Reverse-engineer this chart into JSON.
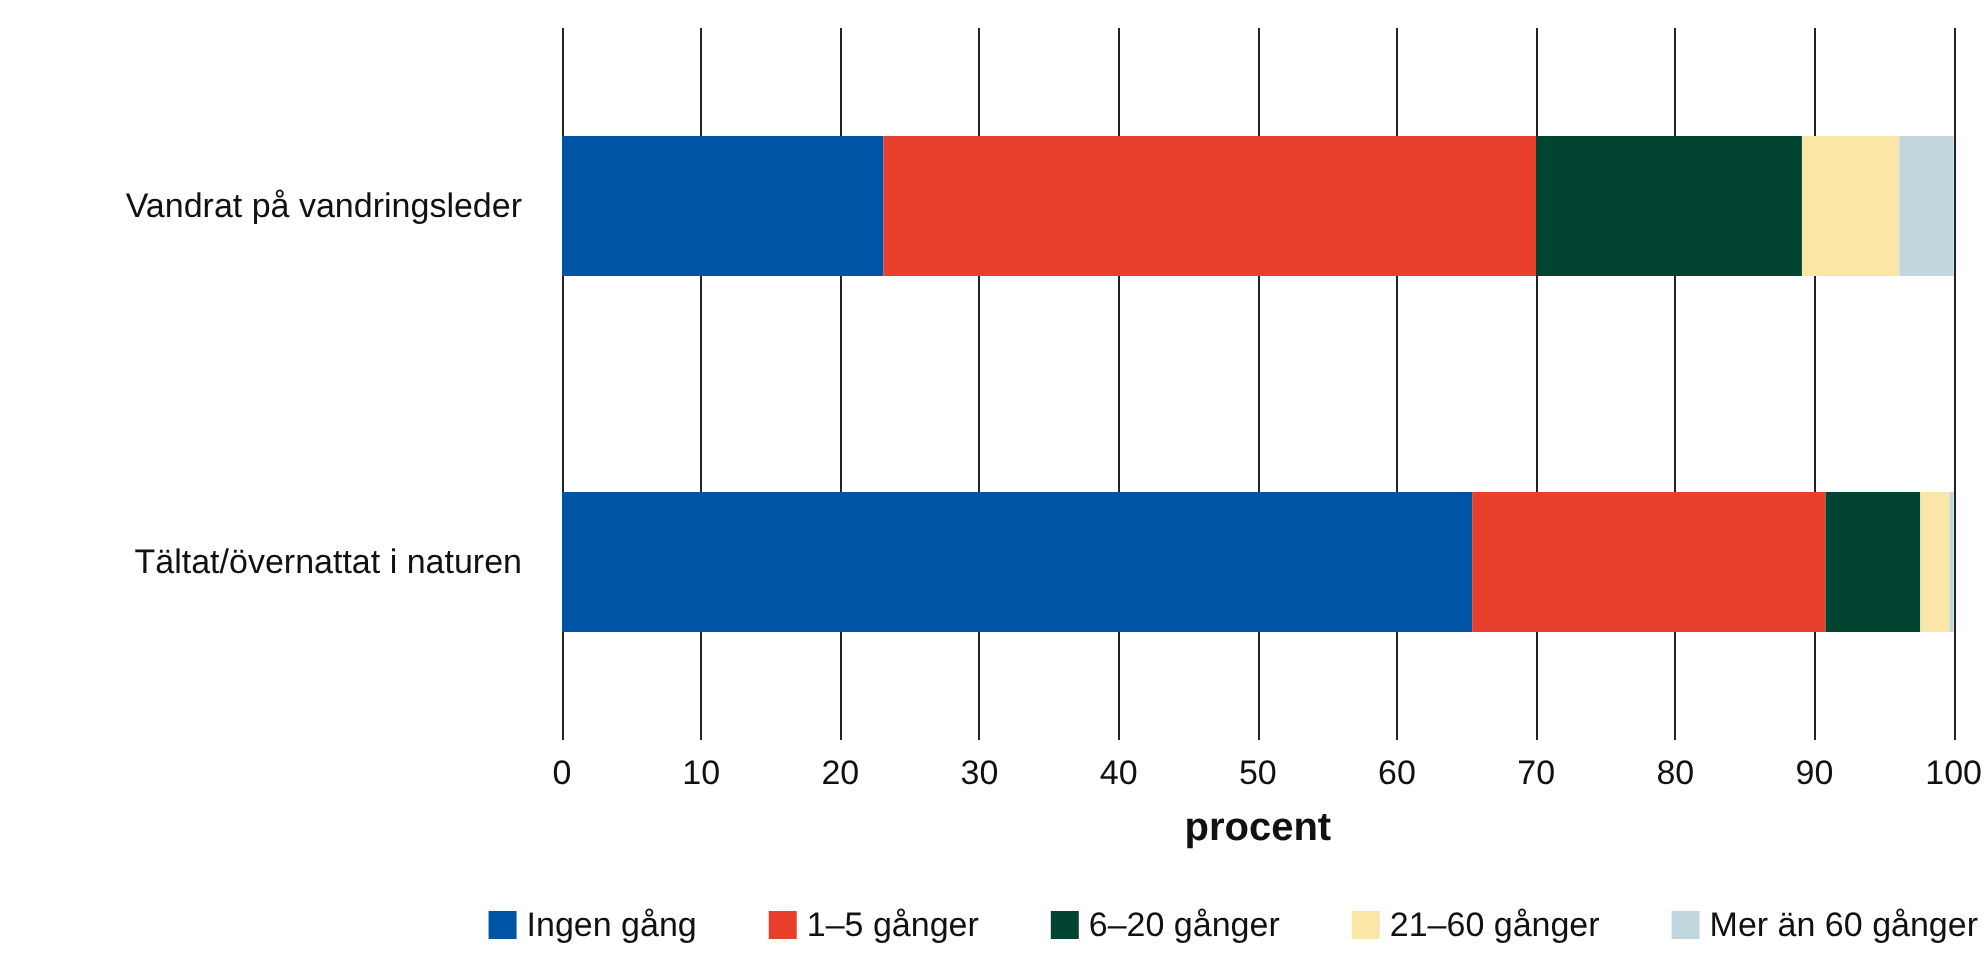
{
  "chart_data": {
    "type": "bar",
    "orientation": "horizontal",
    "stacked": true,
    "xlabel": "procent",
    "categories": [
      "Vandrat på vandringsleder",
      "Tältat/övernattat i naturen"
    ],
    "series": [
      {
        "name": "Ingen gång",
        "color": "#0054a6",
        "values": [
          23.1,
          65.4
        ]
      },
      {
        "name": "1–5 gånger",
        "color": "#e8402d",
        "values": [
          46.9,
          25.4
        ]
      },
      {
        "name": "6–20 gånger",
        "color": "#004431",
        "values": [
          19.1,
          6.8
        ]
      },
      {
        "name": "21–60 gånger",
        "color": "#fae6a6",
        "values": [
          7.0,
          2.1
        ]
      },
      {
        "name": "Mer än 60 gånger",
        "color": "#c2d6dd",
        "values": [
          3.9,
          0.3
        ]
      }
    ],
    "xlim": [
      0,
      100
    ],
    "xticks": [
      0,
      10,
      20,
      30,
      40,
      50,
      60,
      70,
      80,
      90,
      100
    ],
    "grid": "x",
    "legend": "bottom"
  }
}
